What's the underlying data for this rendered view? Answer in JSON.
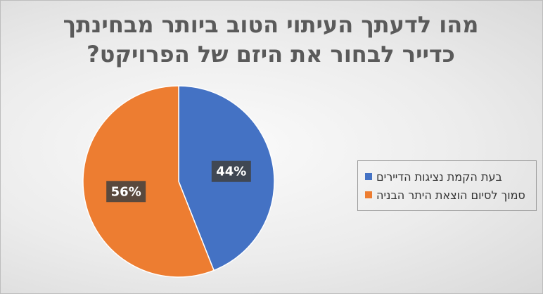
{
  "chart_data": {
    "type": "pie",
    "title_lines": [
      "מהו לדעתך העיתוי הטוב ביותר מבחינתך",
      "כדייר לבחור את היזם של הפרויקט?"
    ],
    "slices": [
      {
        "label": "בעת הקמת נציגות הדיירים",
        "value": 44,
        "display": "44%",
        "color": "#4472c4"
      },
      {
        "label": "סמוך לסיום הוצאת היתר הבניה",
        "value": 56,
        "display": "56%",
        "color": "#ed7d31"
      }
    ],
    "legend_position": "right",
    "data_label_style": "dark-box"
  }
}
